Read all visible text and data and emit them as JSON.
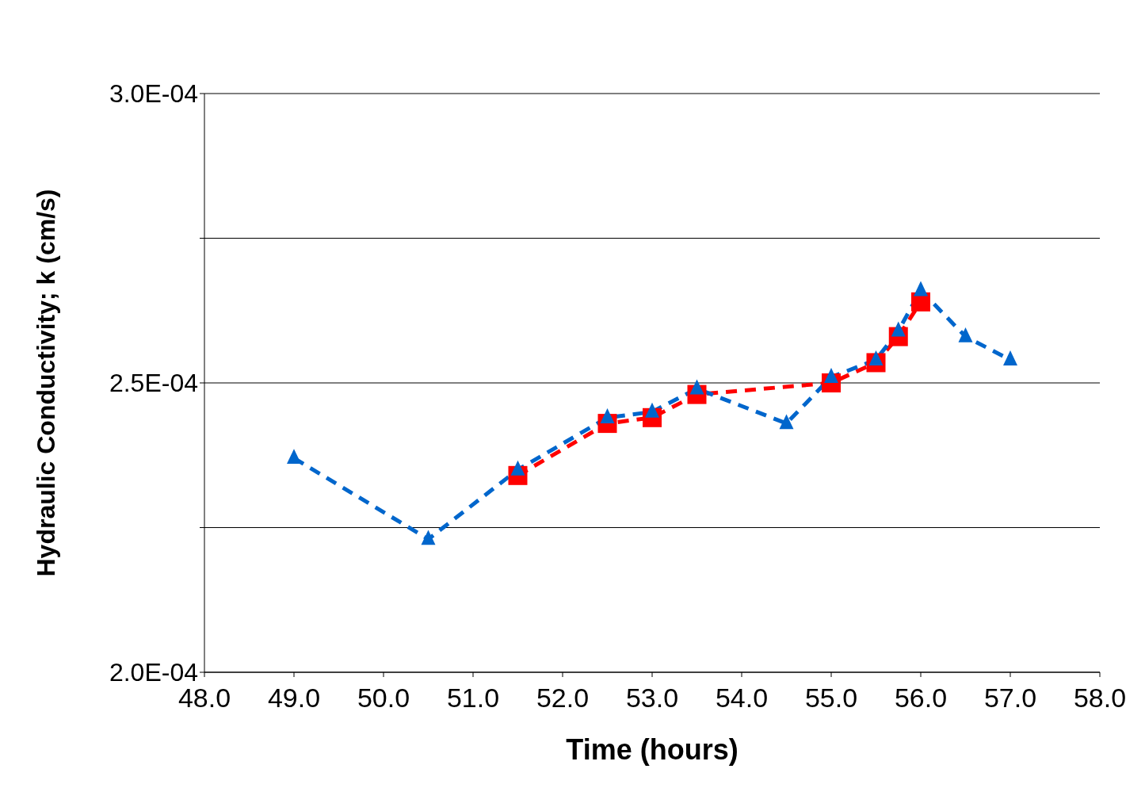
{
  "chart_data": {
    "type": "line",
    "xlabel": "Time (hours)",
    "ylabel": "Hydraulic Conductivity; k (cm/s)",
    "xlim": [
      48,
      58
    ],
    "xticks": [
      {
        "value": 48,
        "label": "48.0"
      },
      {
        "value": 49,
        "label": "49.0"
      },
      {
        "value": 50,
        "label": "50.0"
      },
      {
        "value": 51,
        "label": "51.0"
      },
      {
        "value": 52,
        "label": "52.0"
      },
      {
        "value": 53,
        "label": "53.0"
      },
      {
        "value": 54,
        "label": "54.0"
      },
      {
        "value": 55,
        "label": "55.0"
      },
      {
        "value": 56,
        "label": "56.0"
      },
      {
        "value": 57,
        "label": "57.0"
      },
      {
        "value": 58,
        "label": "58.0"
      }
    ],
    "ylim": [
      0.0002,
      0.0003
    ],
    "yticks": [
      {
        "value": 0.0002,
        "label": "2.0E-04"
      },
      {
        "value": 0.000225,
        "label": null
      },
      {
        "value": 0.00025,
        "label": "2.5E-04"
      },
      {
        "value": 0.000275,
        "label": null
      },
      {
        "value": 0.0003,
        "label": "3.0E-04"
      }
    ],
    "grid": "y",
    "legend": false,
    "line_style": "dashed",
    "series": [
      {
        "color": "#0066cc",
        "marker": "triangle",
        "x": [
          49,
          50.5,
          51.5,
          52.5,
          53,
          53.5,
          54.5,
          55,
          55.5,
          55.75,
          56,
          56.5,
          57
        ],
        "values": [
          0.000237,
          0.000223,
          0.000235,
          0.000244,
          0.000245,
          0.000249,
          0.000243,
          0.000251,
          0.000254,
          0.000259,
          0.000266,
          0.000258,
          0.000254
        ]
      },
      {
        "color": "#ff0000",
        "marker": "square",
        "x": [
          51.5,
          52.5,
          53,
          53.5,
          55,
          55.5,
          55.75,
          56
        ],
        "values": [
          0.000234,
          0.000243,
          0.000244,
          0.000248,
          0.00025,
          0.0002535,
          0.000258,
          0.000264
        ]
      }
    ]
  }
}
